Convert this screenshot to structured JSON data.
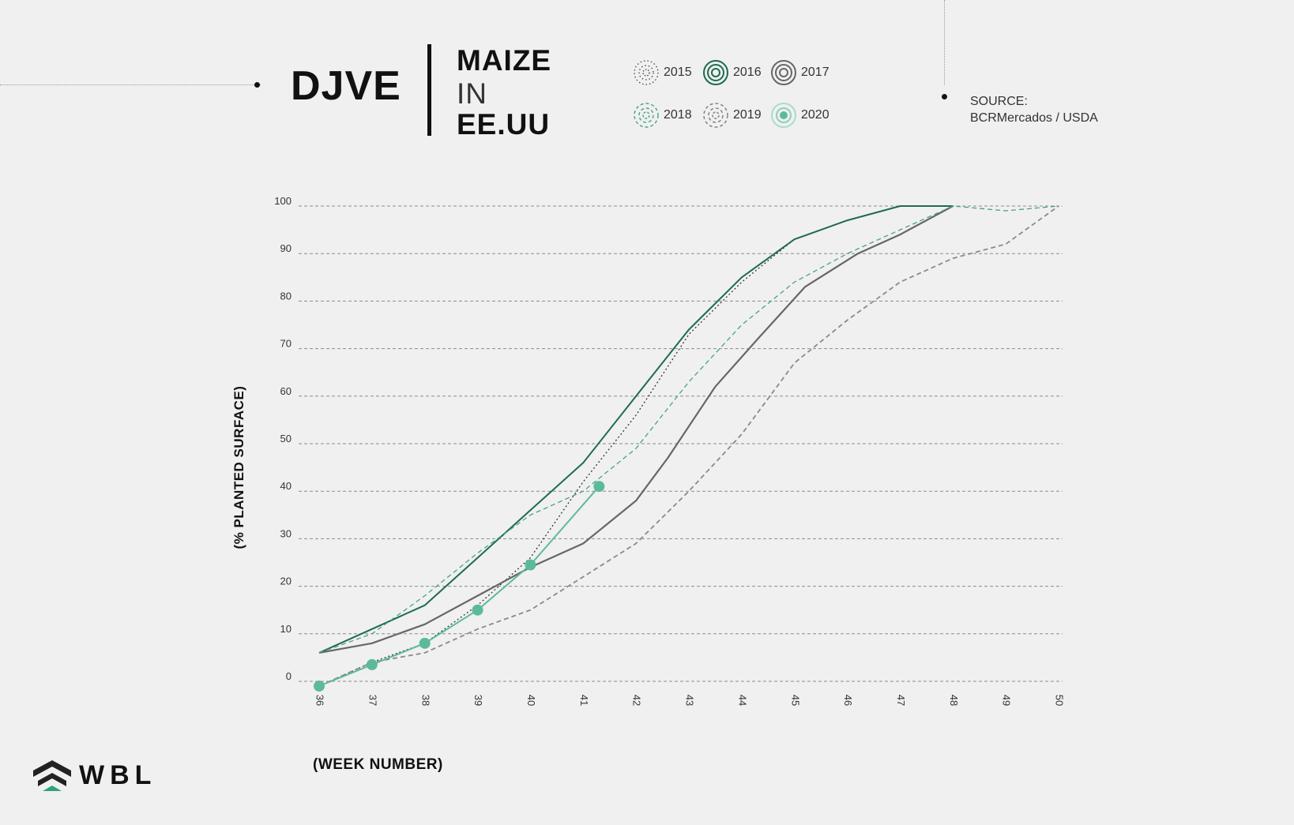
{
  "header": {
    "title": "DJVE",
    "subtitle_lines": [
      "MAIZE",
      "IN",
      "EE.UU"
    ],
    "source_label": "SOURCE:",
    "source_value": "BCRMercados / USDA"
  },
  "logo": {
    "text": "WBL",
    "colors": {
      "dark": "#222222",
      "accent": "#2aa37f"
    }
  },
  "chart_data": {
    "type": "line",
    "title": "",
    "xlabel": "(WEEK NUMBER)",
    "ylabel": "(% PLANTED SURFACE)",
    "x": [
      36,
      37,
      38,
      39,
      40,
      41,
      42,
      43,
      44,
      45,
      46,
      47,
      48,
      49,
      50
    ],
    "xlim": [
      36,
      50
    ],
    "ylim": [
      0,
      100
    ],
    "yticks": [
      0,
      10,
      20,
      30,
      40,
      50,
      60,
      70,
      80,
      90,
      100
    ],
    "grid": "horizontal-dashed",
    "legend_position": "top",
    "series": [
      {
        "name": "2015",
        "color": "#333333",
        "style": "dotted",
        "marker": false,
        "points": [
          [
            36,
            -1
          ],
          [
            37,
            4
          ],
          [
            38,
            8
          ],
          [
            39,
            16
          ],
          [
            40,
            26
          ],
          [
            41,
            42
          ],
          [
            42,
            56
          ],
          [
            43,
            73
          ],
          [
            44,
            84
          ],
          [
            45,
            93
          ],
          [
            46,
            97
          ],
          [
            47,
            100
          ],
          [
            48,
            100
          ]
        ]
      },
      {
        "name": "2016",
        "color": "#1e6b4e",
        "style": "solid",
        "marker": false,
        "points": [
          [
            36,
            6
          ],
          [
            37,
            11
          ],
          [
            38,
            16
          ],
          [
            39,
            26
          ],
          [
            40,
            36
          ],
          [
            41,
            46
          ],
          [
            42,
            60
          ],
          [
            43,
            74
          ],
          [
            44,
            85
          ],
          [
            45,
            93
          ],
          [
            46,
            97
          ],
          [
            47,
            100
          ],
          [
            48,
            100
          ]
        ]
      },
      {
        "name": "2017",
        "color": "#666666",
        "style": "solid",
        "marker": false,
        "points": [
          [
            36,
            6
          ],
          [
            37,
            8
          ],
          [
            38,
            12
          ],
          [
            39,
            18
          ],
          [
            40,
            24
          ],
          [
            41,
            29
          ],
          [
            42,
            38
          ],
          [
            42.6,
            47
          ],
          [
            43.5,
            62
          ],
          [
            44.3,
            72
          ],
          [
            45.2,
            83
          ],
          [
            46.2,
            90
          ],
          [
            47,
            94
          ],
          [
            48,
            100
          ]
        ]
      },
      {
        "name": "2018",
        "color": "#48a380",
        "style": "dashed",
        "marker": false,
        "points": [
          [
            36,
            6
          ],
          [
            37,
            10
          ],
          [
            38,
            18
          ],
          [
            39,
            27
          ],
          [
            40,
            35
          ],
          [
            41,
            40
          ],
          [
            42,
            49
          ],
          [
            43,
            63
          ],
          [
            44,
            75
          ],
          [
            45,
            84
          ],
          [
            46,
            90
          ],
          [
            47,
            95
          ],
          [
            48,
            100
          ],
          [
            49,
            99
          ],
          [
            50,
            100
          ]
        ]
      },
      {
        "name": "2019",
        "color": "#8a8a8a",
        "style": "dashed",
        "marker": false,
        "points": [
          [
            36,
            -1
          ],
          [
            37,
            4
          ],
          [
            38,
            6
          ],
          [
            39,
            11
          ],
          [
            40,
            15
          ],
          [
            41,
            22
          ],
          [
            42,
            29
          ],
          [
            43,
            40
          ],
          [
            44,
            52
          ],
          [
            45,
            67
          ],
          [
            46,
            76
          ],
          [
            47,
            84
          ],
          [
            48,
            89
          ],
          [
            49,
            92
          ],
          [
            50,
            100
          ]
        ]
      },
      {
        "name": "2020",
        "color": "#5cba9b",
        "style": "solid",
        "marker": true,
        "points": [
          [
            36,
            -1
          ],
          [
            37,
            3.5
          ],
          [
            38,
            8
          ],
          [
            39,
            15
          ],
          [
            40,
            24.5
          ],
          [
            41.3,
            41
          ]
        ]
      }
    ]
  }
}
